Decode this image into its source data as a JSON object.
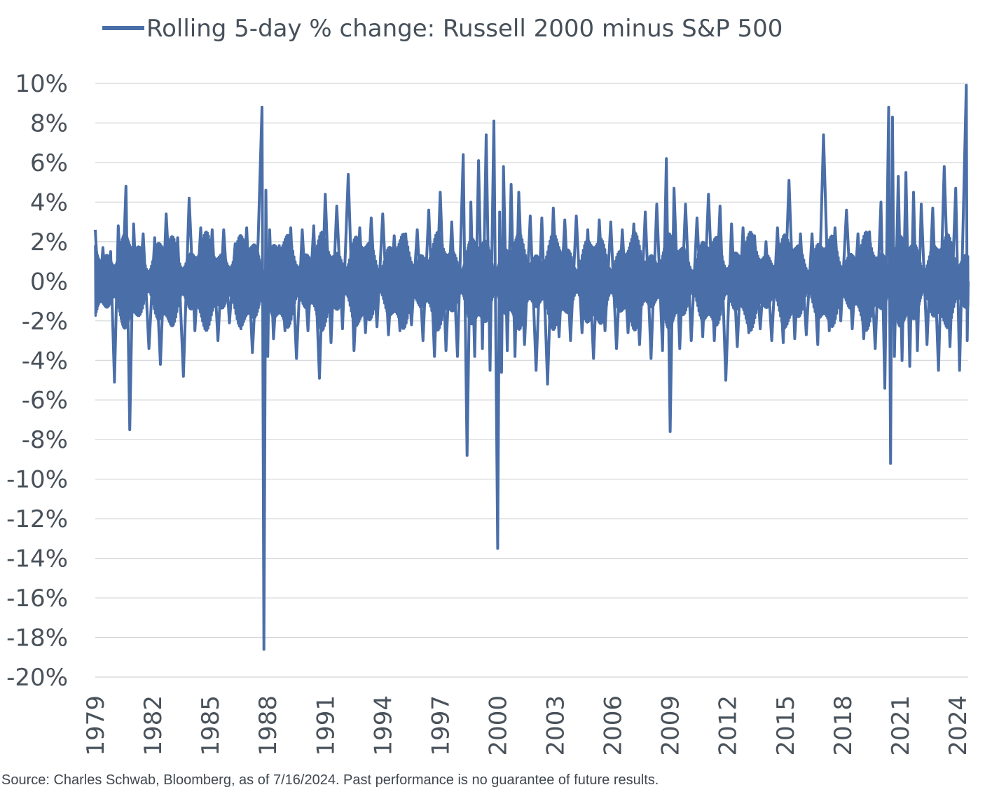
{
  "chart_data": {
    "type": "line",
    "title": "",
    "xlabel": "",
    "ylabel": "",
    "legend": {
      "position": "top-left",
      "entries": [
        "Rolling 5-day % change: Russell 2000 minus S&P 500"
      ]
    },
    "x_ticks": [
      "1979",
      "1982",
      "1985",
      "1988",
      "1991",
      "1994",
      "1997",
      "2000",
      "2003",
      "2006",
      "2009",
      "2012",
      "2015",
      "2018",
      "2021",
      "2024"
    ],
    "y_ticks": [
      "10%",
      "8%",
      "6%",
      "4%",
      "2%",
      "0%",
      "-2%",
      "-4%",
      "-6%",
      "-8%",
      "-10%",
      "-12%",
      "-14%",
      "-16%",
      "-18%",
      "-20%"
    ],
    "xlim": [
      1979.0,
      2024.55
    ],
    "ylim": [
      -20,
      10
    ],
    "grid": true,
    "series": [
      {
        "name": "Rolling 5-day % change: Russell 2000 minus S&P 500",
        "color": "#4a6ea8",
        "x": [
          1979.0,
          1979.2,
          1979.4,
          1979.6,
          1979.8,
          1980.0,
          1980.2,
          1980.4,
          1980.6,
          1980.8,
          1981.0,
          1981.2,
          1981.5,
          1981.8,
          1982.1,
          1982.4,
          1982.7,
          1983.0,
          1983.3,
          1983.6,
          1983.9,
          1984.2,
          1984.5,
          1984.8,
          1985.1,
          1985.4,
          1985.7,
          1986.0,
          1986.3,
          1986.6,
          1986.9,
          1987.2,
          1987.5,
          1987.7,
          1987.8,
          1987.9,
          1988.0,
          1988.1,
          1988.3,
          1988.6,
          1988.9,
          1989.2,
          1989.5,
          1989.8,
          1990.1,
          1990.4,
          1990.7,
          1991.0,
          1991.3,
          1991.6,
          1991.9,
          1992.2,
          1992.5,
          1992.8,
          1993.1,
          1993.4,
          1993.7,
          1994.0,
          1994.3,
          1994.6,
          1994.9,
          1995.2,
          1995.5,
          1995.8,
          1996.1,
          1996.4,
          1996.7,
          1997.0,
          1997.3,
          1997.6,
          1997.9,
          1998.2,
          1998.4,
          1998.6,
          1998.8,
          1999.0,
          1999.2,
          1999.4,
          1999.6,
          1999.8,
          2000.0,
          2000.1,
          2000.2,
          2000.3,
          2000.5,
          2000.7,
          2000.9,
          2001.1,
          2001.4,
          2001.7,
          2002.0,
          2002.3,
          2002.6,
          2002.9,
          2003.2,
          2003.5,
          2003.8,
          2004.1,
          2004.4,
          2004.7,
          2005.0,
          2005.3,
          2005.6,
          2005.9,
          2006.2,
          2006.5,
          2006.8,
          2007.1,
          2007.4,
          2007.7,
          2008.0,
          2008.3,
          2008.6,
          2008.8,
          2009.0,
          2009.2,
          2009.5,
          2009.8,
          2010.1,
          2010.4,
          2010.7,
          2011.0,
          2011.3,
          2011.6,
          2011.9,
          2012.2,
          2012.5,
          2012.8,
          2013.1,
          2013.4,
          2013.7,
          2014.0,
          2014.3,
          2014.6,
          2014.9,
          2015.2,
          2015.5,
          2015.8,
          2016.1,
          2016.4,
          2016.7,
          2017.0,
          2017.3,
          2017.6,
          2017.9,
          2018.2,
          2018.5,
          2018.8,
          2019.1,
          2019.4,
          2019.7,
          2020.0,
          2020.2,
          2020.4,
          2020.5,
          2020.6,
          2020.7,
          2020.9,
          2021.1,
          2021.3,
          2021.5,
          2021.7,
          2021.9,
          2022.1,
          2022.4,
          2022.7,
          2023.0,
          2023.3,
          2023.6,
          2023.9,
          2024.1,
          2024.3,
          2024.45,
          2024.5,
          2024.55
        ],
        "values": [
          2.6,
          -1.0,
          1.7,
          -1.2,
          1.5,
          -5.1,
          2.8,
          -0.8,
          4.8,
          -7.5,
          2.9,
          -1.5,
          2.4,
          -3.4,
          2.2,
          -4.2,
          3.4,
          -2.0,
          2.2,
          -4.8,
          4.2,
          -2.5,
          2.7,
          -2.2,
          2.6,
          -3.0,
          2.6,
          -2.1,
          1.9,
          -2.4,
          2.7,
          -3.6,
          2.1,
          8.8,
          -18.6,
          4.6,
          -3.8,
          2.6,
          -2.9,
          1.8,
          -2.5,
          2.7,
          -3.9,
          2.6,
          -2.5,
          2.8,
          -4.9,
          4.4,
          -3.1,
          3.8,
          -2.4,
          5.4,
          -3.5,
          2.7,
          -2.6,
          3.2,
          -2.3,
          3.4,
          -2.7,
          2.3,
          -2.5,
          2.4,
          -2.2,
          2.6,
          -3.0,
          3.6,
          -3.8,
          4.5,
          -3.5,
          3.0,
          -3.8,
          6.4,
          -8.8,
          4.0,
          -3.8,
          6.1,
          -3.4,
          7.4,
          -4.5,
          8.1,
          -13.5,
          3.5,
          -4.6,
          5.8,
          -3.5,
          4.9,
          -3.8,
          4.5,
          -3.2,
          3.3,
          -4.5,
          3.2,
          -5.2,
          3.7,
          -2.8,
          3.1,
          -3.0,
          3.3,
          -2.6,
          2.6,
          -3.9,
          3.1,
          -2.5,
          3.0,
          -3.4,
          2.6,
          -2.6,
          2.9,
          -3.2,
          3.5,
          -3.9,
          3.9,
          -3.5,
          6.2,
          -7.6,
          4.7,
          -3.4,
          3.9,
          -3.0,
          3.2,
          -2.8,
          4.4,
          -3.0,
          3.8,
          -5.0,
          2.9,
          -3.3,
          2.7,
          -2.6,
          2.3,
          -2.4,
          2.0,
          -3.0,
          2.7,
          -3.1,
          5.1,
          -2.9,
          2.4,
          -2.7,
          2.4,
          -3.2,
          7.4,
          -2.5,
          2.7,
          -2.0,
          3.6,
          -2.4,
          2.4,
          -2.9,
          2.5,
          -3.4,
          4.0,
          -5.4,
          8.8,
          -9.2,
          8.3,
          -3.8,
          5.3,
          -4.0,
          5.5,
          -4.3,
          4.5,
          -3.5,
          3.9,
          -3.2,
          3.7,
          -4.5,
          5.8,
          -3.3,
          4.7,
          -4.5,
          3.6,
          9.9,
          -3.0,
          0.0
        ]
      }
    ]
  },
  "legend_text": "Rolling 5-day % change: Russell 2000 minus S&P 500",
  "source_note": "Source: Charles Schwab, Bloomberg, as of 7/16/2024. Past performance is no guarantee of future results."
}
